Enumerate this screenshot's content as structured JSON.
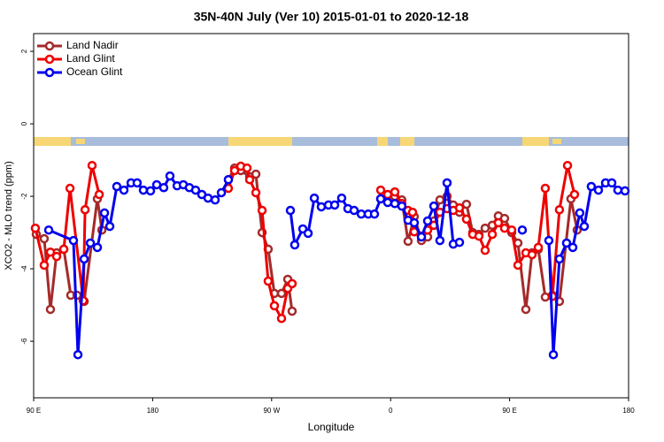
{
  "chart_data": {
    "type": "line",
    "title": "35N-40N July (Ver 10)   2015-01-01 to 2020-12-18",
    "x_label": "Longitude",
    "y_label": "XCO2 - MLO trend (ppm)",
    "xlim": [
      90,
      540
    ],
    "ylim": [
      -7.56,
      2.49
    ],
    "xticks": [
      {
        "value": 90,
        "label": "90 E"
      },
      180,
      {
        "value": 270,
        "label": "90 W"
      },
      {
        "value": 360,
        "label": "0"
      },
      {
        "value": 450,
        "label": "90 E"
      },
      {
        "value": 540,
        "label": "180"
      }
    ],
    "yticks": [
      -6,
      -4,
      -2,
      0,
      2
    ],
    "legend": "top-left",
    "series": [
      {
        "name": "Land Nadir",
        "color": "#a52a2a",
        "x": [
          92.0,
          98.0,
          102.7,
          107.4,
          112.8,
          118.1,
          122.8,
          128.2,
          138.2,
          141.6,
          null,
          237.3,
          242.0,
          246.7,
          253.4,
          258.1,
          262.8,
          267.4,
          272.1,
          277.5,
          282.2,
          285.5,
          null,
          352.5,
          357.8,
          363.2,
          368.5,
          373.2,
          377.9,
          383.3,
          388.0,
          392.7,
          397.3,
          402.7,
          407.4,
          412.1,
          417.4,
          422.1,
          426.8,
          431.5,
          436.9,
          441.5,
          446.2,
          451.6,
          456.3,
          462.3,
          467.0,
          471.7,
          477.0,
          482.4,
          487.7,
          496.4,
          501.1
        ],
        "values": [
          -3.05,
          -3.17,
          -5.12,
          -3.56,
          -3.46,
          -4.73,
          -4.73,
          -4.9,
          -2.07,
          -2.93,
          null,
          -1.54,
          -1.22,
          -1.29,
          -1.46,
          -1.39,
          -3.0,
          -3.46,
          -4.68,
          -4.68,
          -4.29,
          -5.17,
          null,
          -2.07,
          -2.05,
          -2.0,
          -2.1,
          -3.24,
          -2.56,
          -3.22,
          -3.12,
          -2.68,
          -2.1,
          -2.0,
          -2.24,
          -2.44,
          -2.22,
          -3.0,
          -3.05,
          -2.88,
          -2.8,
          -2.54,
          -2.61,
          -3.0,
          -3.29,
          -5.12,
          -3.56,
          -3.46,
          -4.78,
          -4.73,
          -4.9,
          -2.07,
          -2.93
        ]
      },
      {
        "name": "Land Glint",
        "color": "#ee0000",
        "x": [
          91.3,
          98.0,
          102.7,
          107.4,
          112.8,
          117.5,
          127.5,
          128.9,
          134.2,
          139.6,
          null,
          237.3,
          242.0,
          246.7,
          251.4,
          253.4,
          258.1,
          262.8,
          267.4,
          272.1,
          277.5,
          282.2,
          285.5,
          null,
          352.5,
          357.8,
          363.2,
          368.5,
          373.2,
          376.6,
          377.9,
          383.3,
          388.0,
          392.7,
          397.3,
          402.7,
          407.4,
          412.1,
          417.4,
          422.1,
          426.8,
          431.5,
          436.9,
          441.5,
          446.2,
          451.6,
          456.3,
          462.3,
          467.0,
          471.7,
          477.0,
          482.4,
          487.7,
          493.8,
          499.1
        ],
        "values": [
          -2.88,
          -3.9,
          -3.54,
          -3.66,
          -3.46,
          -1.78,
          -4.88,
          -2.37,
          -1.15,
          -1.95,
          null,
          -1.78,
          -1.29,
          -1.17,
          -1.22,
          -1.54,
          -1.9,
          -2.39,
          -4.34,
          -5.02,
          -5.37,
          -4.54,
          -4.41,
          null,
          -1.83,
          -1.95,
          -1.88,
          -2.2,
          -2.39,
          -2.44,
          -2.98,
          -3.1,
          -2.93,
          -2.8,
          -2.44,
          -2.34,
          -2.39,
          -2.32,
          -2.63,
          -3.05,
          -3.1,
          -3.49,
          -3.05,
          -2.73,
          -2.88,
          -2.93,
          -3.9,
          -3.56,
          -3.61,
          -3.41,
          -1.78,
          -4.76,
          -2.37,
          -1.15,
          -1.95
        ]
      },
      {
        "name": "Ocean Glint",
        "color": "#0000ee",
        "x": [
          101.4,
          120.1,
          123.5,
          128.2,
          132.9,
          138.2,
          143.6,
          147.6,
          152.9,
          158.3,
          163.7,
          168.3,
          173.0,
          178.4,
          183.1,
          188.4,
          193.1,
          198.5,
          203.2,
          207.8,
          212.5,
          217.2,
          221.9,
          227.3,
          232.0,
          237.3,
          null,
          284.2,
          287.5,
          293.6,
          297.6,
          302.3,
          307.6,
          313.0,
          317.7,
          323.0,
          327.7,
          332.4,
          337.8,
          343.1,
          347.8,
          352.5,
          357.8,
          363.2,
          368.5,
          373.2,
          377.9,
          383.3,
          388.0,
          392.7,
          397.3,
          402.7,
          407.4,
          412.1,
          null,
          459.6,
          null,
          479.7,
          483.1,
          487.7,
          493.1,
          497.8,
          503.1,
          506.5,
          511.8,
          517.2,
          522.6,
          527.3,
          531.9,
          537.3
        ],
        "values": [
          -2.93,
          -3.22,
          -6.37,
          -3.73,
          -3.29,
          -3.41,
          -2.46,
          -2.83,
          -1.73,
          -1.83,
          -1.63,
          -1.63,
          -1.83,
          -1.85,
          -1.68,
          -1.76,
          -1.44,
          -1.71,
          -1.68,
          -1.76,
          -1.83,
          -1.95,
          -2.05,
          -2.1,
          -1.9,
          -1.54,
          null,
          -2.39,
          -3.34,
          -2.9,
          -3.02,
          -2.05,
          -2.29,
          -2.24,
          -2.24,
          -2.05,
          -2.34,
          -2.39,
          -2.49,
          -2.49,
          -2.49,
          -2.07,
          -2.17,
          -2.2,
          -2.27,
          -2.66,
          -2.73,
          -3.12,
          -2.68,
          -2.27,
          -3.22,
          -1.63,
          -3.32,
          -3.27,
          null,
          -2.93,
          null,
          -3.22,
          -6.37,
          -3.73,
          -3.29,
          -3.41,
          -2.46,
          -2.83,
          -1.73,
          -1.83,
          -1.63,
          -1.63,
          -1.83,
          -1.85
        ]
      }
    ]
  }
}
